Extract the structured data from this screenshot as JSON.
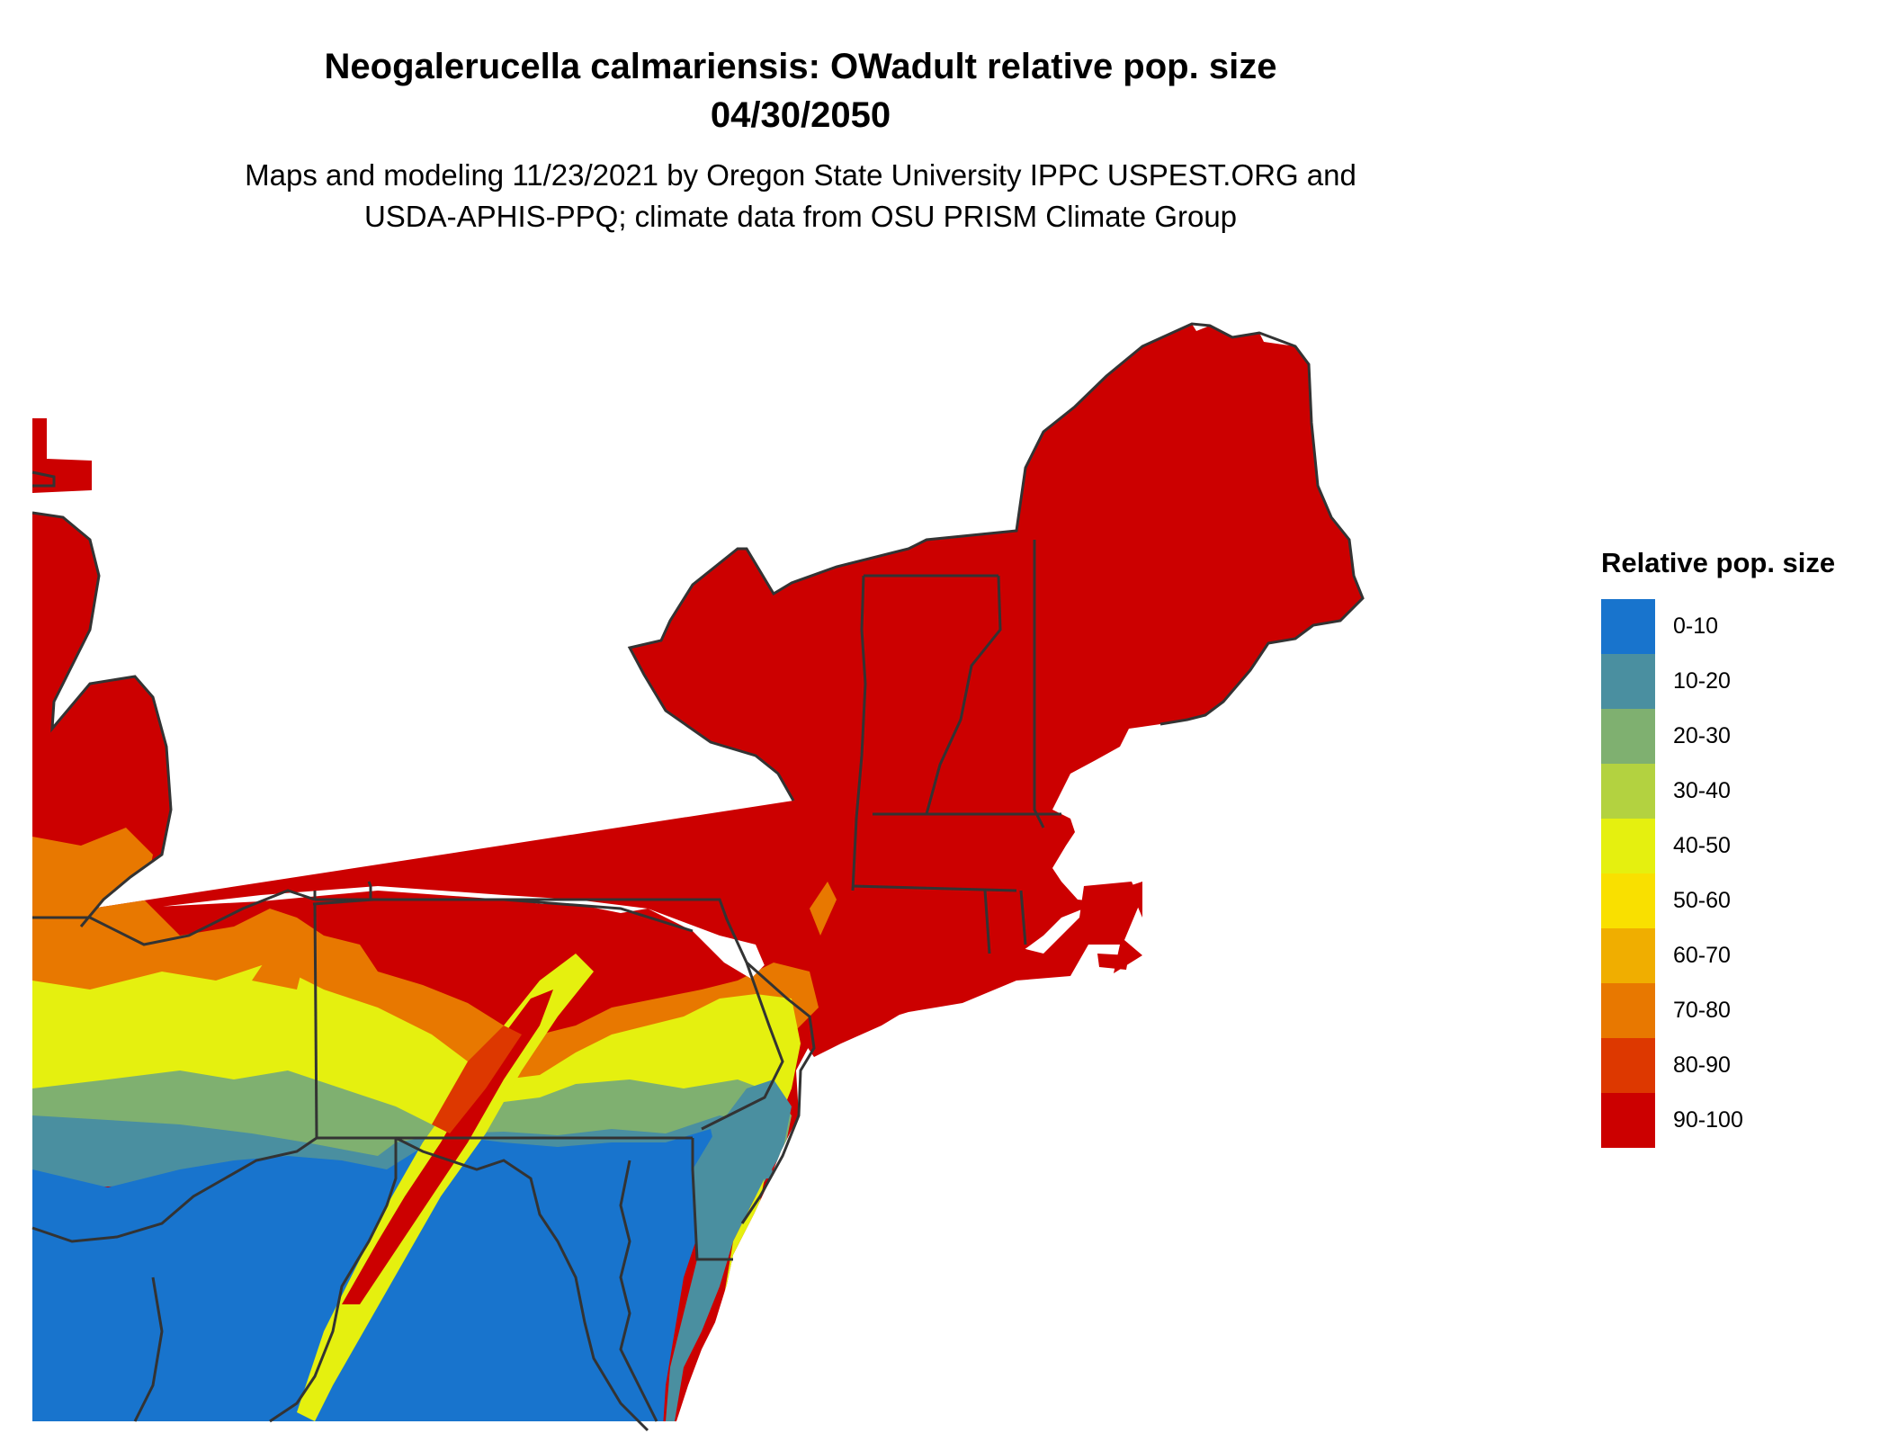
{
  "title": {
    "line1": "Neogalerucella calmariensis: OWadult relative pop. size",
    "line2": "04/30/2050"
  },
  "subtitle": {
    "line1": "Maps and modeling 11/23/2021 by Oregon State University IPPC USPEST.ORG and",
    "line2": "USDA-APHIS-PPQ; climate data from OSU PRISM Climate Group"
  },
  "legend": {
    "title": "Relative pop. size",
    "items": [
      {
        "label": "0-10",
        "color": "#1874CD"
      },
      {
        "label": "10-20",
        "color": "#4A8FA0"
      },
      {
        "label": "20-30",
        "color": "#7FB070"
      },
      {
        "label": "30-40",
        "color": "#B3D240"
      },
      {
        "label": "40-50",
        "color": "#E5F00F"
      },
      {
        "label": "50-60",
        "color": "#F9E000"
      },
      {
        "label": "60-70",
        "color": "#F0AE00"
      },
      {
        "label": "70-80",
        "color": "#E87800"
      },
      {
        "label": "80-90",
        "color": "#DD3800"
      },
      {
        "label": "90-100",
        "color": "#CC0000"
      }
    ]
  },
  "map": {
    "region": "Northeastern United States",
    "border_color": "#333333"
  }
}
